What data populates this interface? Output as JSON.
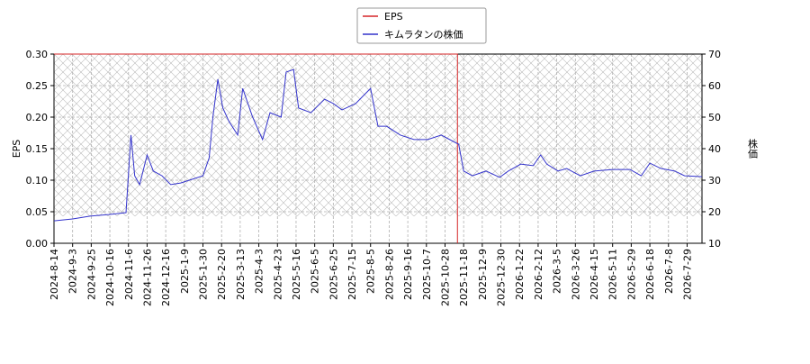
{
  "chart_data": {
    "type": "line",
    "y_label": "EPS",
    "y2_label": "株価",
    "xlim": [
      0,
      522
    ],
    "xticks": [
      {
        "value": 0,
        "label": "2024-8-14"
      },
      {
        "value": 15,
        "label": "2024-9-3"
      },
      {
        "value": 30,
        "label": "2024-9-25"
      },
      {
        "value": 45,
        "label": "2024-10-16"
      },
      {
        "value": 60,
        "label": "2024-11-6"
      },
      {
        "value": 75,
        "label": "2024-11-26"
      },
      {
        "value": 90,
        "label": "2024-12-16"
      },
      {
        "value": 105,
        "label": "2025-1-9"
      },
      {
        "value": 120,
        "label": "2025-1-30"
      },
      {
        "value": 135,
        "label": "2025-2-20"
      },
      {
        "value": 150,
        "label": "2025-3-13"
      },
      {
        "value": 165,
        "label": "2025-4-3"
      },
      {
        "value": 180,
        "label": "2025-4-23"
      },
      {
        "value": 195,
        "label": "2025-5-16"
      },
      {
        "value": 210,
        "label": "2025-6-5"
      },
      {
        "value": 225,
        "label": "2025-6-25"
      },
      {
        "value": 240,
        "label": "2025-7-15"
      },
      {
        "value": 255,
        "label": "2025-8-5"
      },
      {
        "value": 270,
        "label": "2025-8-26"
      },
      {
        "value": 285,
        "label": "2025-9-16"
      },
      {
        "value": 300,
        "label": "2025-10-7"
      },
      {
        "value": 315,
        "label": "2025-10-28"
      },
      {
        "value": 330,
        "label": "2025-11-18"
      },
      {
        "value": 345,
        "label": "2025-12-9"
      },
      {
        "value": 360,
        "label": "2025-12-30"
      },
      {
        "value": 375,
        "label": "2026-1-22"
      },
      {
        "value": 390,
        "label": "2026-2-12"
      },
      {
        "value": 405,
        "label": "2026-3-5"
      },
      {
        "value": 420,
        "label": "2026-3-26"
      },
      {
        "value": 435,
        "label": "2026-4-15"
      },
      {
        "value": 450,
        "label": "2026-5-11"
      },
      {
        "value": 465,
        "label": "2026-5-29"
      },
      {
        "value": 480,
        "label": "2026-6-18"
      },
      {
        "value": 495,
        "label": "2026-7-8"
      },
      {
        "value": 510,
        "label": "2026-7-29"
      }
    ],
    "ylim": [
      0,
      0.3
    ],
    "yticks": [
      {
        "value": 0,
        "label": "0.00"
      },
      0.05,
      {
        "value": 0.1,
        "label": "0.10"
      },
      0.15,
      {
        "value": 0.2,
        "label": "0.20"
      },
      0.25,
      {
        "value": 0.3,
        "label": "0.30"
      }
    ],
    "y2lim": [
      10,
      70
    ],
    "y2ticks": [
      10,
      20,
      30,
      40,
      50,
      60,
      70
    ],
    "grid": true,
    "legend": "top",
    "series": [
      {
        "name": "EPS",
        "color": "#d62728",
        "x": [
          0,
          325,
          325
        ],
        "values": [
          0.3,
          0.3,
          0
        ]
      },
      {
        "name": "キムラタンの株価",
        "color": "#3333cc",
        "axis": "y2",
        "x": [
          0,
          15,
          29,
          44,
          58,
          62,
          65,
          69,
          75,
          80,
          87,
          94,
          102,
          109,
          120,
          125,
          128,
          132,
          136,
          141,
          148,
          152,
          160,
          168,
          174,
          183,
          187,
          193,
          197,
          207,
          218,
          225,
          232,
          243,
          250,
          255,
          261,
          268,
          279,
          290,
          301,
          312,
          323,
          326,
          330,
          337,
          348,
          359,
          366,
          376,
          386,
          392,
          397,
          406,
          413,
          424,
          435,
          450,
          464,
          473,
          480,
          489,
          500,
          508,
          522
        ],
        "values": [
          17.1,
          17.7,
          18.6,
          19.1,
          19.7,
          44.3,
          31.4,
          28.6,
          38,
          32.9,
          31.4,
          28.6,
          29.1,
          30,
          31.4,
          37.1,
          50,
          62,
          52.9,
          48.6,
          44.3,
          59.1,
          50,
          42.9,
          51.4,
          50,
          64.3,
          65.1,
          52.9,
          51.4,
          55.7,
          54.3,
          52.3,
          54.3,
          57.1,
          59.1,
          47.1,
          47.1,
          44.3,
          42.9,
          42.9,
          44.3,
          42,
          41.4,
          32.9,
          31.4,
          32.9,
          30.9,
          32.9,
          35.1,
          34.6,
          38,
          35.1,
          32.9,
          33.7,
          31.4,
          32.9,
          33.4,
          33.4,
          31.4,
          35.4,
          33.7,
          32.9,
          31.4,
          31.1
        ]
      }
    ]
  }
}
